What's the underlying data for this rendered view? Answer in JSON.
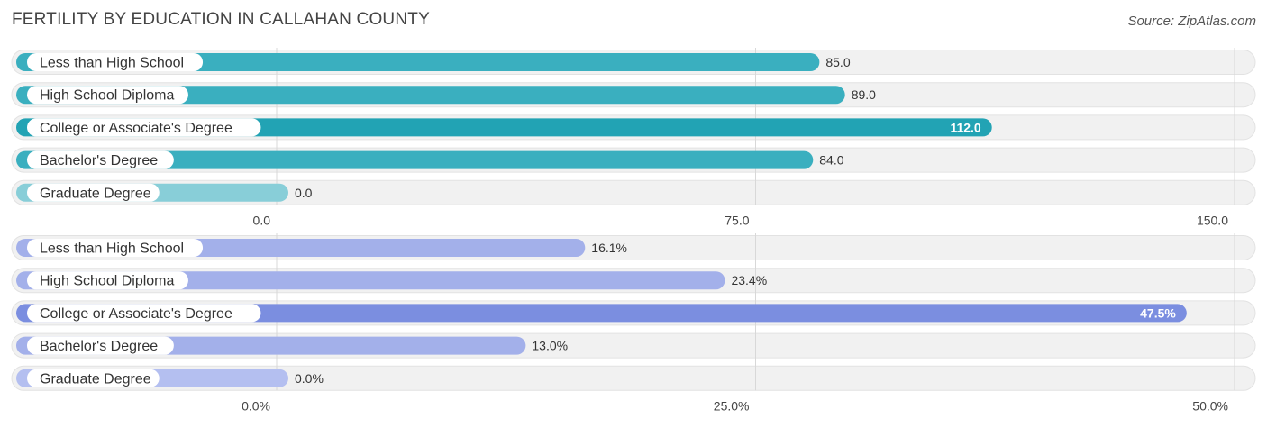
{
  "header": {
    "title": "FERTILITY BY EDUCATION IN CALLAHAN COUNTY",
    "source": "Source: ZipAtlas.com"
  },
  "chart_data": [
    {
      "type": "bar",
      "orientation": "horizontal",
      "categories": [
        "Less than High School",
        "High School Diploma",
        "College or Associate's Degree",
        "Bachelor's Degree",
        "Graduate Degree"
      ],
      "values": [
        85.0,
        89.0,
        112.0,
        84.0,
        0.0
      ],
      "value_labels": [
        "85.0",
        "89.0",
        "112.0",
        "84.0",
        "0.0"
      ],
      "xlim": [
        0,
        150
      ],
      "ticks": [
        0,
        75,
        150
      ],
      "tick_labels": [
        "0.0",
        "75.0",
        "150.0"
      ],
      "grid": true,
      "colors": {
        "bar": "#3aafbf",
        "highlight": "#22a3b4",
        "zero": "#88ced8"
      }
    },
    {
      "type": "bar",
      "orientation": "horizontal",
      "categories": [
        "Less than High School",
        "High School Diploma",
        "College or Associate's Degree",
        "Bachelor's Degree",
        "Graduate Degree"
      ],
      "values": [
        16.1,
        23.4,
        47.5,
        13.0,
        0.0
      ],
      "value_labels": [
        "16.1%",
        "23.4%",
        "47.5%",
        "13.0%",
        "0.0%"
      ],
      "xlim": [
        0,
        50
      ],
      "ticks": [
        0,
        25,
        50
      ],
      "tick_labels": [
        "0.0%",
        "25.0%",
        "50.0%"
      ],
      "grid": true,
      "colors": {
        "bar": "#a3b0ea",
        "highlight": "#7b8ee0",
        "zero": "#b4bff0"
      }
    }
  ]
}
